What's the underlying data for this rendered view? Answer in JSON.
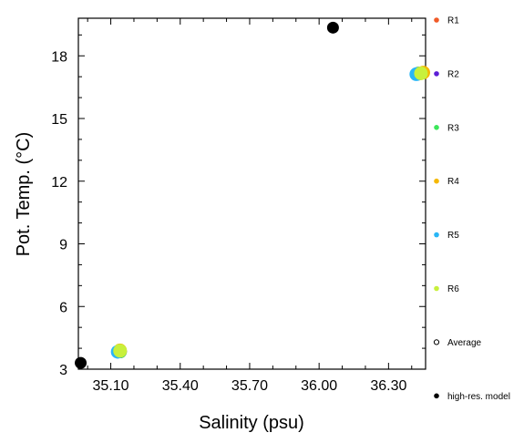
{
  "chart_data": {
    "type": "scatter",
    "title": "",
    "xlabel": "Salinity (psu)",
    "ylabel": "Pot. Temp. (°C)",
    "xlim": [
      34.96,
      36.46
    ],
    "ylim": [
      3.0,
      19.8
    ],
    "xticks": [
      35.1,
      35.4,
      35.7,
      36.0,
      36.3
    ],
    "xtick_labels": [
      "35.10",
      "35.40",
      "35.70",
      "36.00",
      "36.30"
    ],
    "yticks": [
      3,
      6,
      9,
      12,
      15,
      18
    ],
    "ytick_labels": [
      "3",
      "6",
      "9",
      "12",
      "15",
      "18"
    ],
    "legend_position": "right",
    "series": [
      {
        "name": "R1",
        "color": "#f05a28",
        "marker": "filled-circle",
        "points": [
          [
            36.43,
            17.15
          ],
          [
            35.14,
            3.85
          ]
        ]
      },
      {
        "name": "R2",
        "color": "#5c1ed6",
        "marker": "filled-circle",
        "points": [
          [
            36.43,
            17.15
          ],
          [
            35.14,
            3.85
          ]
        ]
      },
      {
        "name": "R3",
        "color": "#3ce65a",
        "marker": "filled-circle",
        "points": [
          [
            36.43,
            17.15
          ],
          [
            35.14,
            3.85
          ]
        ]
      },
      {
        "name": "R4",
        "color": "#f5b800",
        "marker": "filled-circle",
        "points": [
          [
            36.45,
            17.2
          ],
          [
            35.14,
            3.9
          ]
        ]
      },
      {
        "name": "R5",
        "color": "#29b6f6",
        "marker": "filled-circle",
        "points": [
          [
            36.42,
            17.12
          ],
          [
            35.13,
            3.83
          ]
        ]
      },
      {
        "name": "R6",
        "color": "#c8f03c",
        "marker": "filled-circle",
        "points": [
          [
            36.44,
            17.16
          ],
          [
            35.14,
            3.88
          ]
        ]
      },
      {
        "name": "Average",
        "color": "#000000",
        "marker": "open-circle",
        "points": []
      },
      {
        "name": "high-res. model",
        "color": "#000000",
        "marker": "filled-circle",
        "points": [
          [
            36.06,
            19.35
          ],
          [
            34.97,
            3.3
          ]
        ]
      }
    ]
  }
}
